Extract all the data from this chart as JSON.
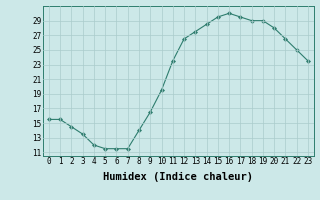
{
  "x": [
    0,
    1,
    2,
    3,
    4,
    5,
    6,
    7,
    8,
    9,
    10,
    11,
    12,
    13,
    14,
    15,
    16,
    17,
    18,
    19,
    20,
    21,
    22,
    23
  ],
  "y": [
    15.5,
    15.5,
    14.5,
    13.5,
    12.0,
    11.5,
    11.5,
    11.5,
    14.0,
    16.5,
    19.5,
    23.5,
    26.5,
    27.5,
    28.5,
    29.5,
    30.0,
    29.5,
    29.0,
    29.0,
    28.0,
    26.5,
    25.0,
    23.5
  ],
  "line_color": "#2e7d6e",
  "marker": "D",
  "marker_size": 2.2,
  "bg_color": "#cce8e8",
  "grid_color": "#aacccc",
  "xlabel": "Humidex (Indice chaleur)",
  "xlim": [
    -0.5,
    23.5
  ],
  "ylim": [
    10.5,
    31
  ],
  "yticks": [
    11,
    13,
    15,
    17,
    19,
    21,
    23,
    25,
    27,
    29
  ],
  "xtick_labels": [
    "0",
    "1",
    "2",
    "3",
    "4",
    "5",
    "6",
    "7",
    "8",
    "9",
    "10",
    "11",
    "12",
    "13",
    "14",
    "15",
    "16",
    "17",
    "18",
    "19",
    "20",
    "21",
    "22",
    "23"
  ],
  "xlabel_fontsize": 7.5,
  "tick_fontsize": 5.5
}
